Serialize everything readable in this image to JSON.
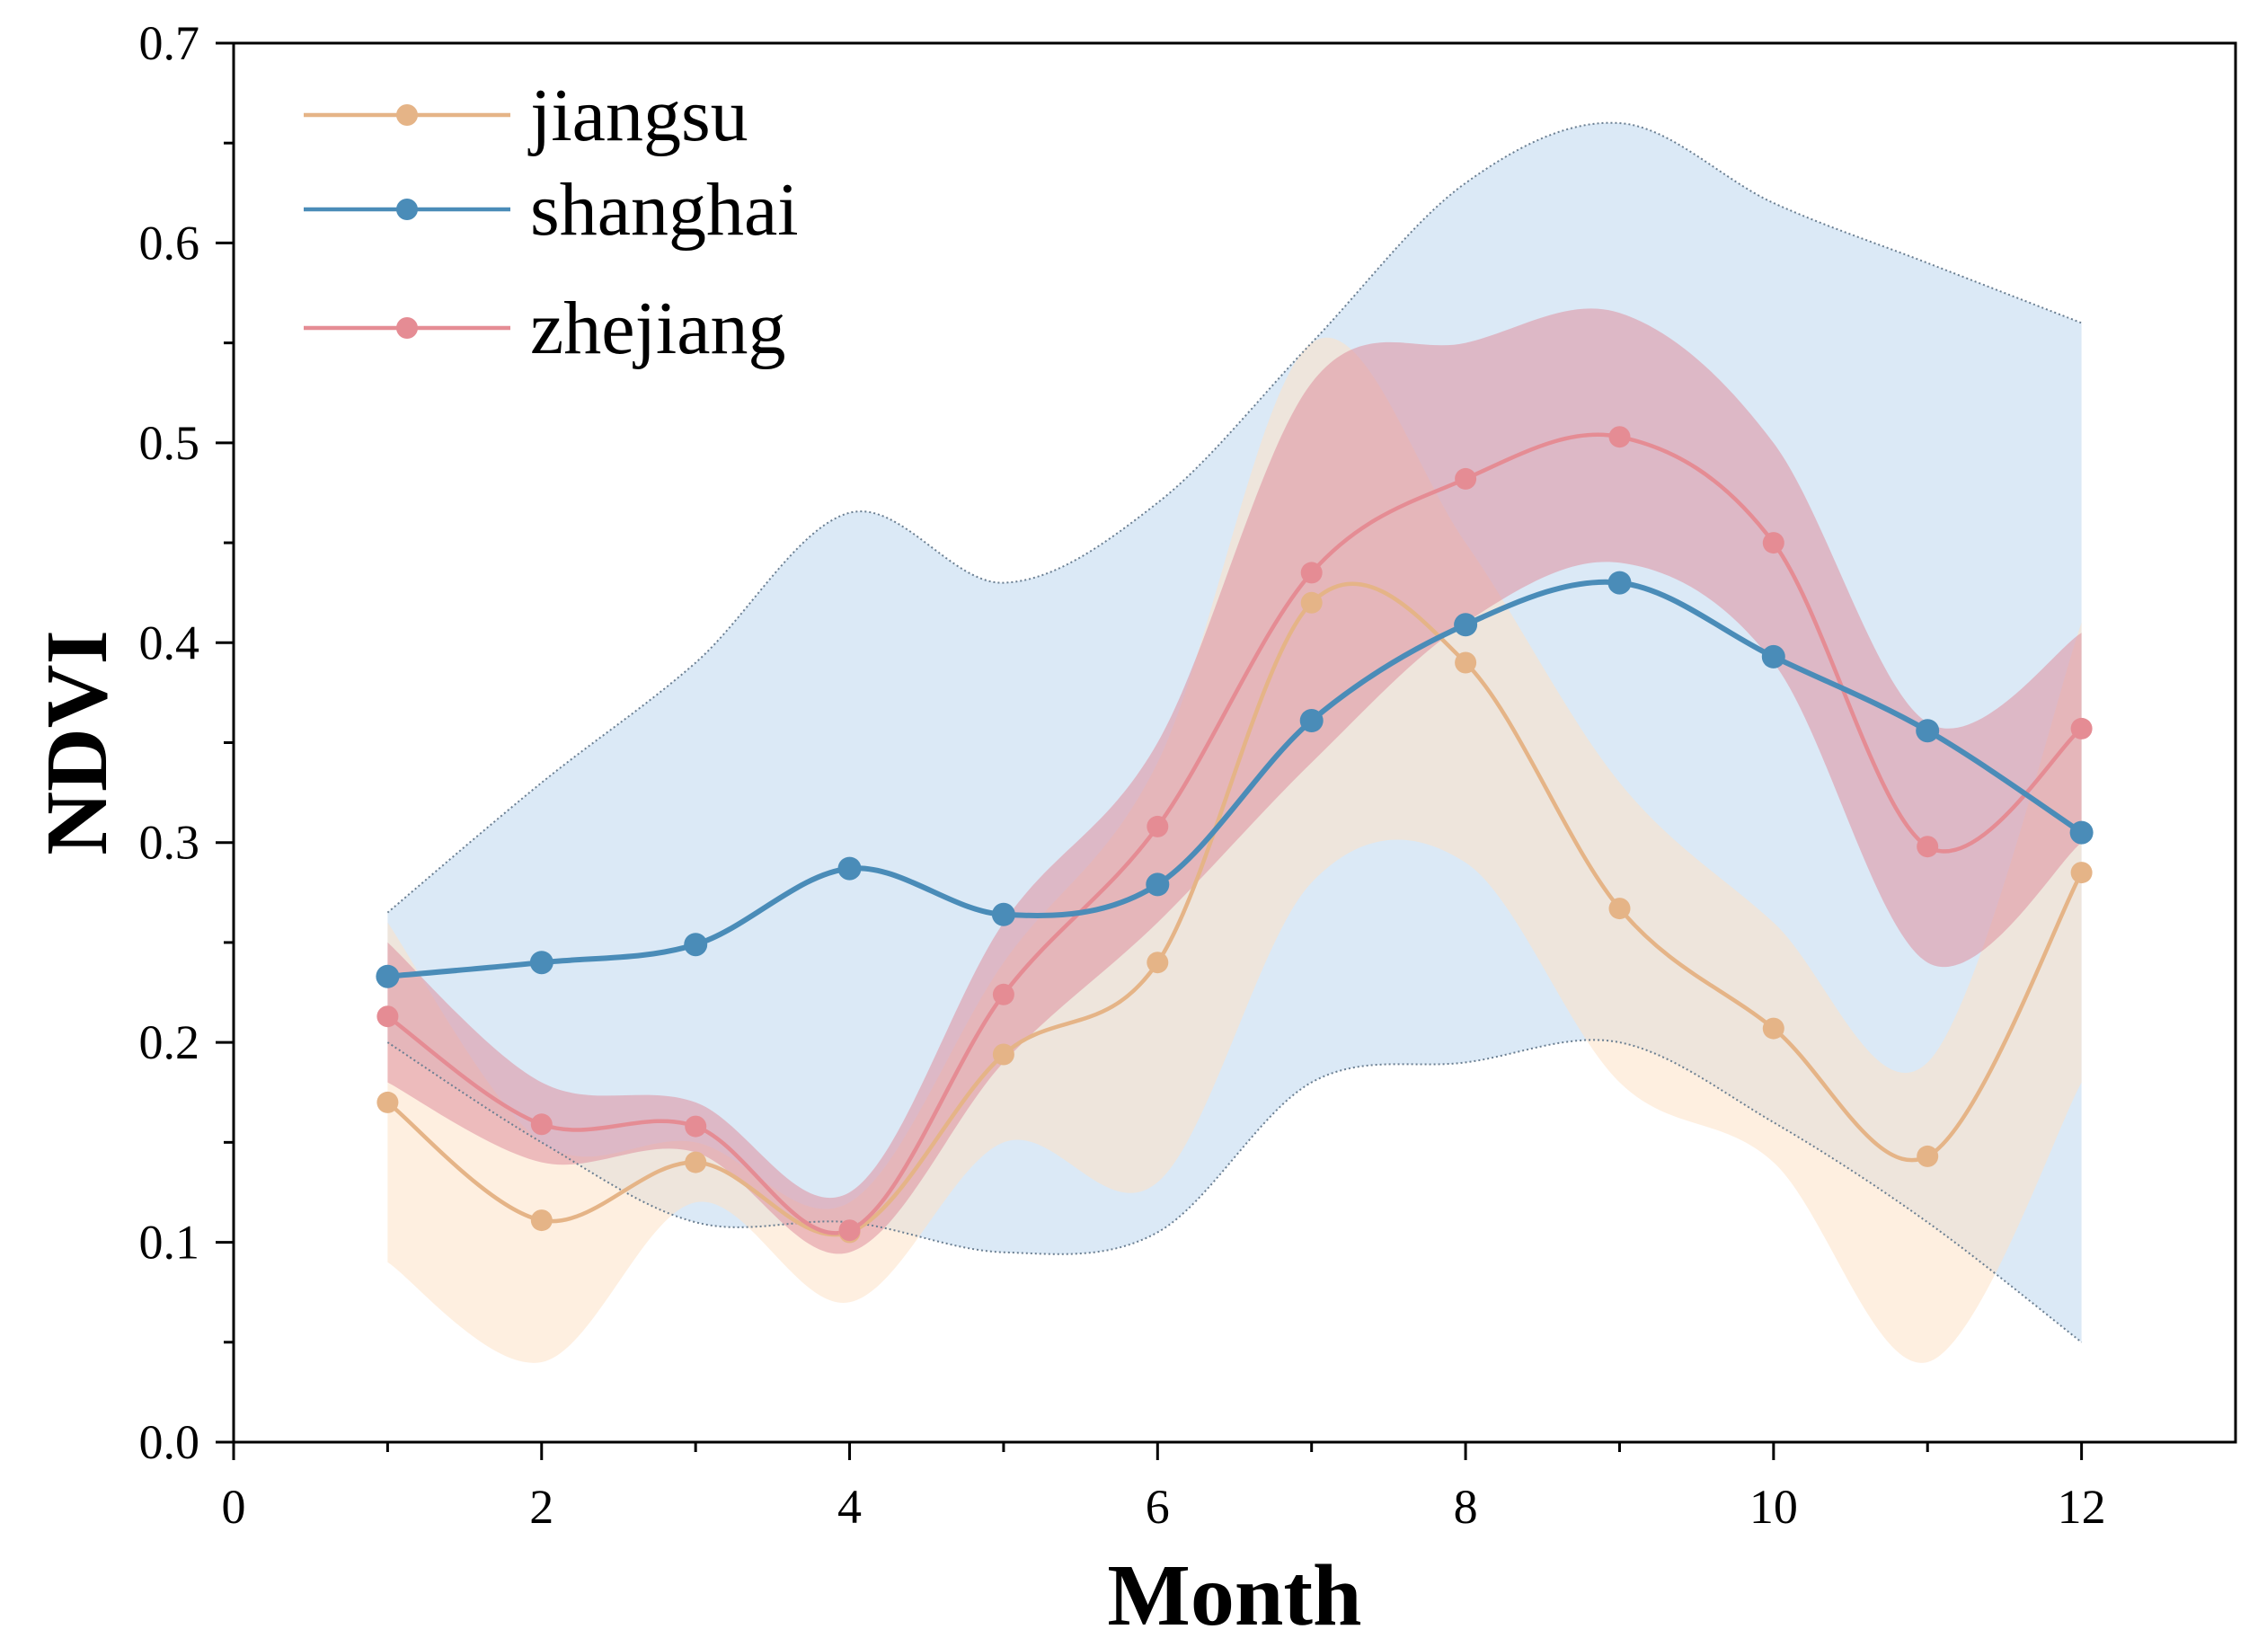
{
  "chart_data": {
    "type": "line",
    "title": "",
    "xlabel": "Month",
    "ylabel": "NDVI",
    "xlim": [
      0,
      13
    ],
    "ylim": [
      0.0,
      0.7
    ],
    "xticks": [
      "0",
      "2",
      "4",
      "6",
      "8",
      "10",
      "12"
    ],
    "xtick_values": [
      0,
      2,
      4,
      6,
      8,
      10,
      12
    ],
    "yticks": [
      "0.0",
      "0.1",
      "0.2",
      "0.3",
      "0.4",
      "0.5",
      "0.6",
      "0.7"
    ],
    "ytick_values": [
      0.0,
      0.1,
      0.2,
      0.3,
      0.4,
      0.5,
      0.6,
      0.7
    ],
    "grid": false,
    "legend_position": "top-left",
    "x": [
      1,
      2,
      3,
      4,
      5,
      6,
      7,
      8,
      9,
      10,
      11,
      12
    ],
    "series": [
      {
        "name": "jiangsu",
        "color": "#e5b487",
        "band_color": "#fde2c7",
        "values": [
          0.17,
          0.111,
          0.14,
          0.105,
          0.194,
          0.24,
          0.42,
          0.39,
          0.267,
          0.207,
          0.143,
          0.285
        ],
        "band_upper": [
          0.26,
          0.15,
          0.15,
          0.12,
          0.24,
          0.34,
          0.55,
          0.45,
          0.33,
          0.26,
          0.19,
          0.41
        ],
        "band_lower": [
          0.09,
          0.04,
          0.12,
          0.07,
          0.15,
          0.13,
          0.28,
          0.29,
          0.18,
          0.14,
          0.04,
          0.18
        ]
      },
      {
        "name": "shanghai",
        "color": "#4a8cb8",
        "band_color": "#cfe1f3",
        "values": [
          0.233,
          0.24,
          0.249,
          0.287,
          0.264,
          0.279,
          0.361,
          0.409,
          0.43,
          0.393,
          0.356,
          0.305
        ],
        "band_upper": [
          0.265,
          0.33,
          0.39,
          0.465,
          0.43,
          0.47,
          0.55,
          0.63,
          0.66,
          0.62,
          0.59,
          0.56
        ],
        "band_lower": [
          0.2,
          0.15,
          0.11,
          0.11,
          0.095,
          0.105,
          0.18,
          0.19,
          0.2,
          0.16,
          0.11,
          0.05
        ]
      },
      {
        "name": "zhejiang",
        "color": "#e58c94",
        "band_color": "#de8f9f",
        "values": [
          0.213,
          0.159,
          0.158,
          0.106,
          0.224,
          0.308,
          0.435,
          0.482,
          0.503,
          0.45,
          0.298,
          0.357
        ],
        "band_upper": [
          0.25,
          0.18,
          0.17,
          0.125,
          0.26,
          0.35,
          0.53,
          0.55,
          0.565,
          0.5,
          0.36,
          0.405
        ],
        "band_lower": [
          0.18,
          0.14,
          0.145,
          0.095,
          0.19,
          0.26,
          0.34,
          0.41,
          0.44,
          0.39,
          0.24,
          0.3
        ]
      }
    ]
  }
}
